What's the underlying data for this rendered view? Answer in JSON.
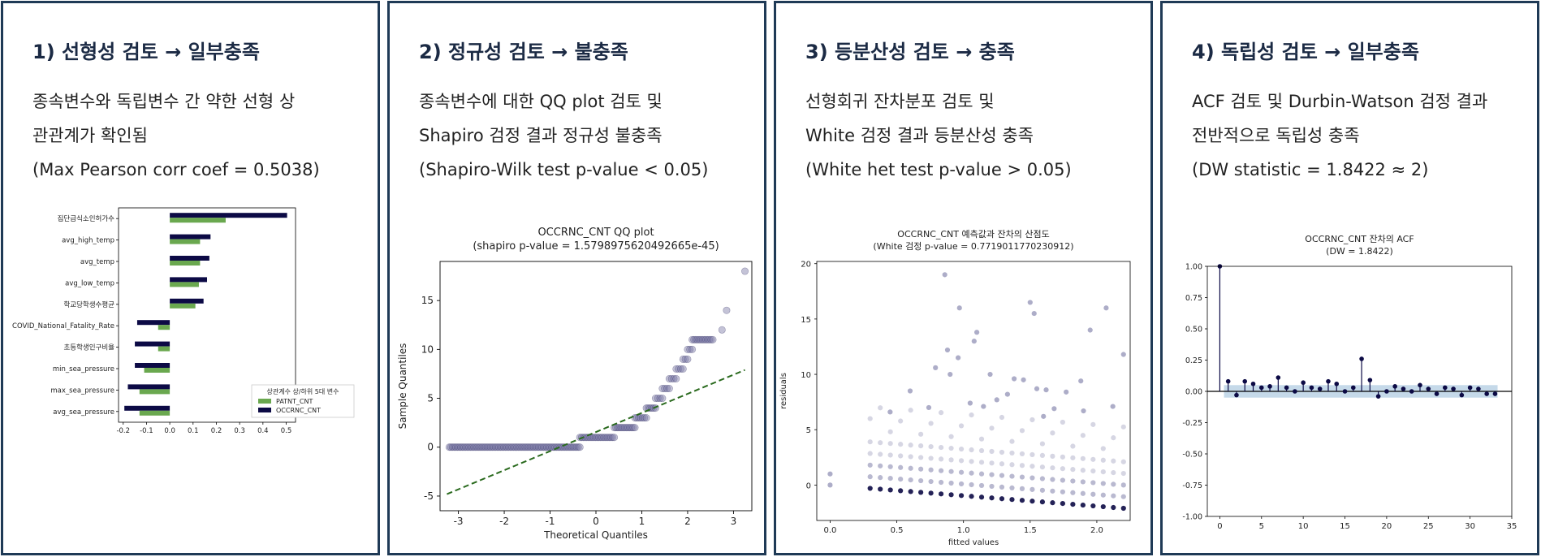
{
  "panels": [
    {
      "title": "1) 선형성 검토 → 일부충족",
      "lines": [
        "종속변수와 독립변수 간 약한 선형 상",
        "관관계가 확인됨",
        "(Max Pearson corr coef = 0.5038)"
      ]
    },
    {
      "title": "2) 정규성 검토 → 불충족",
      "lines": [
        "종속변수에 대한 QQ plot 검토 및",
        "Shapiro 검정 결과 정규성 불충족",
        "(Shapiro-Wilk test p-value < 0.05)"
      ]
    },
    {
      "title": "3) 등분산성 검토 → 충족",
      "lines": [
        "선형회귀 잔차분포 검토 및",
        "White 검정 결과 등분산성 충족",
        "(White het test p-value > 0.05)"
      ]
    },
    {
      "title": "4) 독립성 검토 → 일부충족",
      "lines": [
        "ACF 검토 및 Durbin-Watson 검정 결과",
        "전반적으로 독립성 충족",
        "(DW statistic = 1.8422 ≈ 2)"
      ]
    }
  ],
  "colors": {
    "border": "#1f3a56",
    "title": "#1b2a44",
    "navy": "#0c0a45",
    "green": "#6aa84f",
    "qq_point": "#7c7ba6",
    "qq_line": "#2a6a1e",
    "scatter": "#8a8ab0",
    "acf_band": "#b7cfe4"
  },
  "chart_data": [
    {
      "type": "bar",
      "orientation": "horizontal",
      "categories": [
        "집단급식소인허가수",
        "avg_high_temp",
        "avg_temp",
        "avg_low_temp",
        "학교당학생수평균",
        "COVID_National_Fatality_Rate",
        "초등학생인구비율",
        "min_sea_pressure",
        "max_sea_pressure",
        "avg_sea_pressure"
      ],
      "series": [
        {
          "name": "PATNT_CNT",
          "values": [
            0.24,
            0.13,
            0.13,
            0.125,
            0.11,
            -0.05,
            -0.05,
            -0.11,
            -0.13,
            -0.13
          ]
        },
        {
          "name": "OCCRNC_CNT",
          "values": [
            0.5038,
            0.175,
            0.17,
            0.16,
            0.145,
            -0.14,
            -0.15,
            -0.15,
            -0.18,
            -0.195
          ]
        }
      ],
      "xlim": [
        -0.22,
        0.54
      ],
      "xticks": [
        "-0.2",
        "-0.1",
        "0.0",
        "0.1",
        "0.2",
        "0.3",
        "0.4",
        "0.5"
      ],
      "legend_title": "상관계수 상/하위 5대 변수",
      "legend_position": "lower-right"
    },
    {
      "type": "scatter",
      "title": "OCCRNC_CNT QQ plot",
      "subtitle": "(shapiro p-value = 1.5798975620492665e-45)",
      "xlabel": "Theoretical Quantiles",
      "ylabel": "Sample Quantiles",
      "xlim": [
        -3.4,
        3.4
      ],
      "ylim": [
        -6.5,
        19
      ],
      "xticks": [
        "-3",
        "-2",
        "-1",
        "0",
        "1",
        "2",
        "3"
      ],
      "yticks": [
        "-5",
        "0",
        "5",
        "10",
        "15"
      ],
      "reference_line": {
        "x": [
          -3.25,
          3.25
        ],
        "y": [
          -4.8,
          7.9
        ]
      },
      "steps": [
        {
          "x0": -3.2,
          "x1": -0.35,
          "y": 0
        },
        {
          "x0": -0.35,
          "x1": 0.4,
          "y": 1
        },
        {
          "x0": 0.4,
          "x1": 0.85,
          "y": 2
        },
        {
          "x0": 0.85,
          "x1": 1.1,
          "y": 3
        },
        {
          "x0": 1.1,
          "x1": 1.3,
          "y": 4
        },
        {
          "x0": 1.3,
          "x1": 1.45,
          "y": 5
        },
        {
          "x0": 1.45,
          "x1": 1.6,
          "y": 6
        },
        {
          "x0": 1.6,
          "x1": 1.75,
          "y": 7
        },
        {
          "x0": 1.75,
          "x1": 1.9,
          "y": 8
        },
        {
          "x0": 1.9,
          "x1": 2.0,
          "y": 9
        },
        {
          "x0": 2.0,
          "x1": 2.1,
          "y": 10
        },
        {
          "x0": 2.1,
          "x1": 2.55,
          "y": 11
        }
      ],
      "tail_points": [
        [
          2.75,
          12
        ],
        [
          2.85,
          14
        ],
        [
          3.25,
          18
        ]
      ]
    },
    {
      "type": "scatter",
      "title": "OCCRNC_CNT 예측값과 잔차의 산점도",
      "subtitle": "(White 검정 p-value = 0.7719011770230912)",
      "xlabel": "fitted values",
      "ylabel": "residuals",
      "xlim": [
        -0.1,
        2.25
      ],
      "ylim": [
        -3.2,
        20.2
      ],
      "xticks": [
        "0.0",
        "0.5",
        "1.0",
        "1.5",
        "2.0"
      ],
      "yticks": [
        "0",
        "5",
        "10",
        "15",
        "20"
      ],
      "lowest_band": {
        "x0": 0.3,
        "x1": 2.2,
        "y0": -0.3,
        "y1": -2.1
      },
      "outliers": [
        [
          0.86,
          19
        ],
        [
          0.97,
          16
        ],
        [
          1.5,
          16.5
        ],
        [
          1.53,
          15.5
        ],
        [
          2.07,
          16
        ],
        [
          1.95,
          14
        ],
        [
          1.1,
          13.8
        ],
        [
          1.08,
          13
        ],
        [
          0.88,
          12.2
        ],
        [
          0.96,
          11.5
        ],
        [
          2.2,
          11.8
        ],
        [
          0.79,
          10.6
        ],
        [
          0.9,
          10
        ],
        [
          1.2,
          10
        ],
        [
          1.38,
          9.6
        ],
        [
          1.45,
          9.5
        ],
        [
          1.88,
          9.4
        ],
        [
          1.62,
          8.6
        ],
        [
          0.6,
          8.5
        ],
        [
          1.77,
          8.4
        ],
        [
          1.55,
          8.7
        ],
        [
          1.33,
          8.2
        ],
        [
          0.45,
          6.6
        ],
        [
          0.74,
          7
        ],
        [
          1.05,
          7.4
        ],
        [
          1.15,
          7.1
        ],
        [
          1.25,
          7.7
        ],
        [
          1.68,
          6.9
        ],
        [
          1.9,
          6.7
        ],
        [
          2.12,
          7.1
        ],
        [
          1.6,
          6.2
        ],
        [
          0.0,
          1.0
        ],
        [
          0.0,
          0.0
        ]
      ]
    },
    {
      "type": "bar",
      "title": "OCCRNC_CNT 잔차의 ACF",
      "subtitle": "(DW = 1.8422)",
      "lags": [
        0,
        1,
        2,
        3,
        4,
        5,
        6,
        7,
        8,
        9,
        10,
        11,
        12,
        13,
        14,
        15,
        16,
        17,
        18,
        19,
        20,
        21,
        22,
        23,
        24,
        25,
        26,
        27,
        28,
        29,
        30,
        31,
        32,
        33
      ],
      "values": [
        1.0,
        0.08,
        -0.03,
        0.08,
        0.06,
        0.03,
        0.04,
        0.11,
        0.03,
        0.0,
        0.07,
        0.03,
        0.02,
        0.08,
        0.06,
        0.0,
        0.03,
        0.26,
        0.09,
        -0.04,
        0.0,
        0.04,
        0.02,
        0.0,
        0.05,
        0.02,
        -0.02,
        0.03,
        0.02,
        -0.03,
        0.03,
        0.02,
        -0.02,
        -0.02
      ],
      "confidence_band": 0.05,
      "xlim": [
        -1.5,
        35
      ],
      "ylim": [
        -1.0,
        1.0
      ],
      "xticks": [
        "0",
        "5",
        "10",
        "15",
        "20",
        "25",
        "30",
        "35"
      ],
      "yticks": [
        "1.00",
        "0.75",
        "0.50",
        "0.25",
        "0.00",
        "-0.25",
        "-0.50",
        "-0.75",
        "-1.00"
      ]
    }
  ]
}
